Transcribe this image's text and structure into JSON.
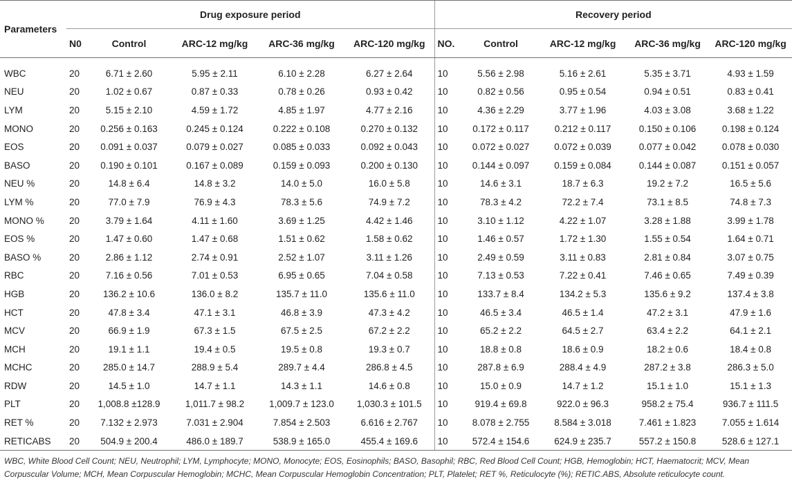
{
  "header": {
    "parameters": "Parameters",
    "drug_period": "Drug exposure period",
    "recovery_period": "Recovery period",
    "drug_cols": [
      "N0",
      "Control",
      "ARC-12 mg/kg",
      "ARC-36 mg/kg",
      "ARC-120 mg/kg"
    ],
    "recovery_cols": [
      "NO.",
      "Control",
      "ARC-12 mg/kg",
      "ARC-36 mg/kg",
      "ARC-120 mg/kg"
    ]
  },
  "rows": [
    {
      "param": "WBC",
      "n0": "20",
      "d": [
        "6.71 ± 2.60",
        "5.95 ± 2.11",
        "6.10 ± 2.28",
        "6.27 ± 2.64"
      ],
      "no": "10",
      "r": [
        "5.56 ± 2.98",
        "5.16 ± 2.61",
        "5.35 ± 3.71",
        "4.93 ± 1.59"
      ]
    },
    {
      "param": "NEU",
      "n0": "20",
      "d": [
        "1.02 ± 0.67",
        "0.87 ± 0.33",
        "0.78 ± 0.26",
        "0.93 ± 0.42"
      ],
      "no": "10",
      "r": [
        "0.82 ± 0.56",
        "0.95 ± 0.54",
        "0.94 ± 0.51",
        "0.83 ± 0.41"
      ]
    },
    {
      "param": "LYM",
      "n0": "20",
      "d": [
        "5.15 ± 2.10",
        "4.59 ± 1.72",
        "4.85 ± 1.97",
        "4.77 ± 2.16"
      ],
      "no": "10",
      "r": [
        "4.36 ± 2.29",
        "3.77 ± 1.96",
        "4.03 ± 3.08",
        "3.68 ± 1.22"
      ]
    },
    {
      "param": "MONO",
      "n0": "20",
      "d": [
        "0.256 ± 0.163",
        "0.245 ± 0.124",
        "0.222 ± 0.108",
        "0.270 ± 0.132"
      ],
      "no": "10",
      "r": [
        "0.172 ± 0.117",
        "0.212 ± 0.117",
        "0.150 ± 0.106",
        "0.198 ± 0.124"
      ]
    },
    {
      "param": "EOS",
      "n0": "20",
      "d": [
        "0.091 ± 0.037",
        "0.079 ± 0.027",
        "0.085 ± 0.033",
        "0.092 ± 0.043"
      ],
      "no": "10",
      "r": [
        "0.072 ± 0.027",
        "0.072 ± 0.039",
        "0.077 ± 0.042",
        "0.078 ± 0.030"
      ]
    },
    {
      "param": "BASO",
      "n0": "20",
      "d": [
        "0.190 ± 0.101",
        "0.167 ± 0.089",
        "0.159 ± 0.093",
        "0.200 ± 0.130"
      ],
      "no": "10",
      "r": [
        "0.144 ± 0.097",
        "0.159 ± 0.084",
        "0.144 ± 0.087",
        "0.151 ± 0.057"
      ]
    },
    {
      "param": "NEU %",
      "n0": "20",
      "d": [
        "14.8 ± 6.4",
        "14.8 ± 3.2",
        "14.0 ± 5.0",
        "16.0 ± 5.8"
      ],
      "no": "10",
      "r": [
        "14.6 ± 3.1",
        "18.7 ± 6.3",
        "19.2 ± 7.2",
        "16.5 ± 5.6"
      ]
    },
    {
      "param": "LYM %",
      "n0": "20",
      "d": [
        "77.0 ± 7.9",
        "76.9 ± 4.3",
        "78.3 ± 5.6",
        "74.9 ± 7.2"
      ],
      "no": "10",
      "r": [
        "78.3 ± 4.2",
        "72.2 ± 7.4",
        "73.1 ± 8.5",
        "74.8 ± 7.3"
      ]
    },
    {
      "param": "MONO %",
      "n0": "20",
      "d": [
        "3.79 ± 1.64",
        "4.11 ± 1.60",
        "3.69 ± 1.25",
        "4.42 ± 1.46"
      ],
      "no": "10",
      "r": [
        "3.10 ± 1.12",
        "4.22 ± 1.07",
        "3.28 ± 1.88",
        "3.99 ± 1.78"
      ]
    },
    {
      "param": "EOS %",
      "n0": "20",
      "d": [
        "1.47 ± 0.60",
        "1.47 ± 0.68",
        "1.51 ± 0.62",
        "1.58 ± 0.62"
      ],
      "no": "10",
      "r": [
        "1.46 ± 0.57",
        "1.72 ± 1.30",
        "1.55 ± 0.54",
        "1.64 ± 0.71"
      ]
    },
    {
      "param": "BASO %",
      "n0": "20",
      "d": [
        "2.86 ± 1.12",
        "2.74 ± 0.91",
        "2.52 ± 1.07",
        "3.11 ± 1.26"
      ],
      "no": "10",
      "r": [
        "2.49 ± 0.59",
        "3.11 ± 0.83",
        "2.81 ± 0.84",
        "3.07 ± 0.75"
      ]
    },
    {
      "param": "RBC",
      "n0": "20",
      "d": [
        "7.16 ± 0.56",
        "7.01 ± 0.53",
        "6.95 ± 0.65",
        "7.04 ± 0.58"
      ],
      "no": "10",
      "r": [
        "7.13 ± 0.53",
        "7.22 ± 0.41",
        "7.46 ± 0.65",
        "7.49 ± 0.39"
      ]
    },
    {
      "param": "HGB",
      "n0": "20",
      "d": [
        "136.2 ± 10.6",
        "136.0 ± 8.2",
        "135.7 ± 11.0",
        "135.6 ± 11.0"
      ],
      "no": "10",
      "r": [
        "133.7 ± 8.4",
        "134.2 ± 5.3",
        "135.6 ± 9.2",
        "137.4 ± 3.8"
      ]
    },
    {
      "param": "HCT",
      "n0": "20",
      "d": [
        "47.8 ± 3.4",
        "47.1 ± 3.1",
        "46.8 ± 3.9",
        "47.3 ± 4.2"
      ],
      "no": "10",
      "r": [
        "46.5 ± 3.4",
        "46.5 ± 1.4",
        "47.2 ± 3.1",
        "47.9 ± 1.6"
      ]
    },
    {
      "param": "MCV",
      "n0": "20",
      "d": [
        "66.9 ± 1.9",
        "67.3 ± 1.5",
        "67.5 ± 2.5",
        "67.2 ± 2.2"
      ],
      "no": "10",
      "r": [
        "65.2 ± 2.2",
        "64.5 ± 2.7",
        "63.4 ± 2.2",
        "64.1 ± 2.1"
      ]
    },
    {
      "param": "MCH",
      "n0": "20",
      "d": [
        "19.1 ± 1.1",
        "19.4 ± 0.5",
        "19.5 ± 0.8",
        "19.3 ± 0.7"
      ],
      "no": "10",
      "r": [
        "18.8 ± 0.8",
        "18.6 ± 0.9",
        "18.2 ± 0.6",
        "18.4 ± 0.8"
      ]
    },
    {
      "param": "MCHC",
      "n0": "20",
      "d": [
        "285.0 ± 14.7",
        "288.9 ± 5.4",
        "289.7 ± 4.4",
        "286.8 ± 4.5"
      ],
      "no": "10",
      "r": [
        "287.8 ± 6.9",
        "288.4 ± 4.9",
        "287.2 ± 3.8",
        "286.3 ± 5.0"
      ]
    },
    {
      "param": "RDW",
      "n0": "20",
      "d": [
        "14.5 ± 1.0",
        "14.7 ± 1.1",
        "14.3 ± 1.1",
        "14.6 ± 0.8"
      ],
      "no": "10",
      "r": [
        "15.0 ± 0.9",
        "14.7 ± 1.2",
        "15.1 ± 1.0",
        "15.1 ± 1.3"
      ]
    },
    {
      "param": "PLT",
      "n0": "20",
      "d": [
        "1,008.8 ±128.9",
        "1,011.7 ± 98.2",
        "1,009.7 ± 123.0",
        "1,030.3 ± 101.5"
      ],
      "no": "10",
      "r": [
        "919.4 ± 69.8",
        "922.0 ± 96.3",
        "958.2 ± 75.4",
        "936.7 ± 111.5"
      ]
    },
    {
      "param": "RET %",
      "n0": "20",
      "d": [
        "7.132 ± 2.973",
        "7.031 ± 2.904",
        "7.854 ± 2.503",
        "6.616 ± 2.767"
      ],
      "no": "10",
      "r": [
        "8.078 ± 2.755",
        "8.584 ± 3.018",
        "7.461 ± 1.823",
        "7.055 ± 1.614"
      ]
    },
    {
      "param": "RETICABS",
      "n0": "20",
      "d": [
        "504.9 ± 200.4",
        "486.0 ± 189.7",
        "538.9 ± 165.0",
        "455.4 ± 169.6"
      ],
      "no": "10",
      "r": [
        "572.4 ± 154.6",
        "624.9 ± 235.7",
        "557.2 ± 150.8",
        "528.6 ± 127.1"
      ]
    }
  ],
  "footnote": "WBC, White Blood Cell Count; NEU, Neutrophil; LYM, Lymphocyte; MONO, Monocyte; EOS, Eosinophils; BASO, Basophil; RBC, Red Blood Cell Count; HGB, Hemoglobin; HCT, Haematocrit; MCV, Mean Corpuscular Volume; MCH, Mean Corpuscular Hemoglobin; MCHC, Mean Corpuscular Hemoglobin Concentration; PLT, Platelet; RET %, Reticulocyte (%); RETIC.ABS, Absolute reticulocyte count."
}
